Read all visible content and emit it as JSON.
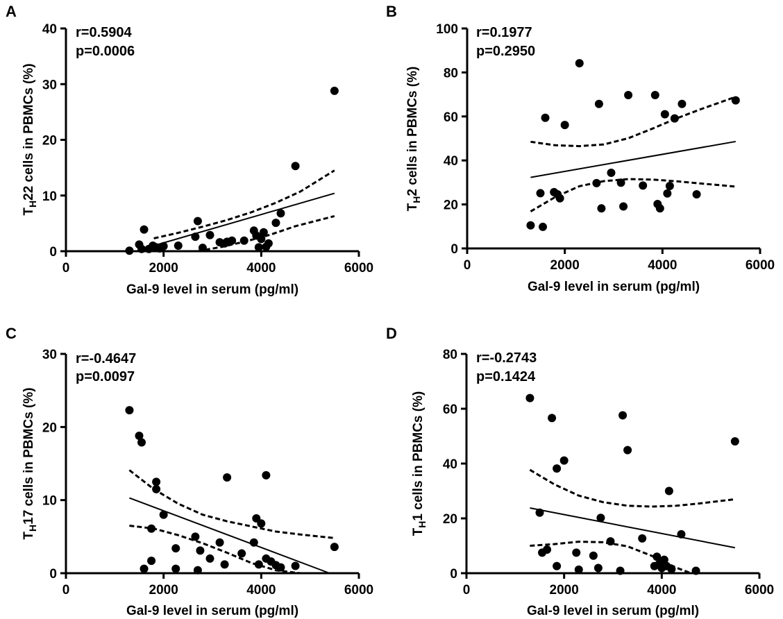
{
  "figure": {
    "panel_count": 4
  },
  "chart_data": [
    {
      "panel": "A",
      "type": "scatter",
      "stats": {
        "r": "r=0.5904",
        "p": "p=0.0006"
      },
      "xlabel": "Gal-9 level in serum (pg/ml)",
      "ylabel": {
        "prefix": "T",
        "sub": "H",
        "suffix": "22 cells in PBMCs (%)"
      },
      "xlim": [
        0,
        6000
      ],
      "ylim": [
        0,
        40
      ],
      "xticks": [
        0,
        2000,
        4000,
        6000
      ],
      "yticks": [
        0,
        10,
        20,
        30,
        40
      ],
      "points": [
        {
          "x": 1300,
          "y": 0.1
        },
        {
          "x": 1500,
          "y": 1.2
        },
        {
          "x": 1550,
          "y": 0.4
        },
        {
          "x": 1600,
          "y": 3.9
        },
        {
          "x": 1700,
          "y": 0.4
        },
        {
          "x": 1780,
          "y": 1.0
        },
        {
          "x": 1850,
          "y": 0.7
        },
        {
          "x": 1920,
          "y": 0.5
        },
        {
          "x": 2000,
          "y": 0.9
        },
        {
          "x": 2300,
          "y": 1.0
        },
        {
          "x": 2650,
          "y": 2.6
        },
        {
          "x": 2700,
          "y": 5.4
        },
        {
          "x": 2800,
          "y": 0.6
        },
        {
          "x": 2950,
          "y": 2.9
        },
        {
          "x": 3150,
          "y": 1.6
        },
        {
          "x": 3250,
          "y": 1.4
        },
        {
          "x": 3300,
          "y": 1.7
        },
        {
          "x": 3400,
          "y": 1.9
        },
        {
          "x": 3650,
          "y": 1.9
        },
        {
          "x": 3850,
          "y": 3.7
        },
        {
          "x": 3900,
          "y": 2.8
        },
        {
          "x": 3950,
          "y": 0.7
        },
        {
          "x": 4000,
          "y": 2.2
        },
        {
          "x": 4050,
          "y": 3.4
        },
        {
          "x": 4100,
          "y": 0.8
        },
        {
          "x": 4150,
          "y": 1.4
        },
        {
          "x": 4300,
          "y": 5.1
        },
        {
          "x": 4400,
          "y": 6.8
        },
        {
          "x": 4700,
          "y": 15.3
        },
        {
          "x": 5500,
          "y": 28.8
        }
      ],
      "fit": {
        "x": [
          1800,
          5500
        ],
        "y": [
          1.0,
          10.4
        ]
      },
      "ci_upper": {
        "x": [
          1800,
          2300,
          2800,
          3300,
          3800,
          4300,
          4800,
          5500
        ],
        "y": [
          2.3,
          3.3,
          4.4,
          5.6,
          7.0,
          8.7,
          10.7,
          14.5
        ]
      },
      "ci_lower": {
        "x": [
          2700,
          3200,
          3700,
          4200,
          4700,
          5500
        ],
        "y": [
          0.0,
          0.8,
          1.8,
          3.0,
          4.5,
          6.3
        ]
      }
    },
    {
      "panel": "B",
      "type": "scatter",
      "stats": {
        "r": "r=0.1977",
        "p": "p=0.2950"
      },
      "xlabel": "Gal-9 level in serum (pg/ml)",
      "ylabel": {
        "prefix": "T",
        "sub": "H",
        "suffix": "2 cells in PBMCs (%)"
      },
      "xlim": [
        0,
        6000
      ],
      "ylim": [
        0,
        100
      ],
      "xticks": [
        0,
        2000,
        4000,
        6000
      ],
      "yticks": [
        0,
        20,
        40,
        60,
        80,
        100
      ],
      "points": [
        {
          "x": 1300,
          "y": 10.5
        },
        {
          "x": 1500,
          "y": 25.1
        },
        {
          "x": 1550,
          "y": 9.8
        },
        {
          "x": 1600,
          "y": 59.4
        },
        {
          "x": 1780,
          "y": 25.6
        },
        {
          "x": 1850,
          "y": 24.6
        },
        {
          "x": 1900,
          "y": 22.8
        },
        {
          "x": 2000,
          "y": 56.1
        },
        {
          "x": 2300,
          "y": 84.2
        },
        {
          "x": 2650,
          "y": 29.7
        },
        {
          "x": 2700,
          "y": 65.7
        },
        {
          "x": 2750,
          "y": 18.2
        },
        {
          "x": 2950,
          "y": 34.4
        },
        {
          "x": 3150,
          "y": 29.9
        },
        {
          "x": 3200,
          "y": 19.1
        },
        {
          "x": 3300,
          "y": 69.7
        },
        {
          "x": 3600,
          "y": 28.6
        },
        {
          "x": 3850,
          "y": 69.7
        },
        {
          "x": 3900,
          "y": 20.2
        },
        {
          "x": 3950,
          "y": 18.2
        },
        {
          "x": 4050,
          "y": 61.0
        },
        {
          "x": 4100,
          "y": 25.0
        },
        {
          "x": 4150,
          "y": 28.4
        },
        {
          "x": 4250,
          "y": 59.1
        },
        {
          "x": 4400,
          "y": 65.7
        },
        {
          "x": 4700,
          "y": 24.6
        },
        {
          "x": 5500,
          "y": 67.3
        }
      ],
      "fit": {
        "x": [
          1300,
          5500
        ],
        "y": [
          32.3,
          48.6
        ]
      },
      "ci_upper": {
        "x": [
          1300,
          1800,
          2300,
          2800,
          3300,
          3800,
          4300,
          4800,
          5500
        ],
        "y": [
          48.5,
          46.9,
          46.5,
          47.3,
          50.1,
          54.5,
          59.2,
          63.4,
          68.9
        ]
      },
      "ci_lower": {
        "x": [
          1300,
          1800,
          2300,
          2800,
          3300,
          3800,
          4300,
          4800,
          5500
        ],
        "y": [
          16.8,
          23.3,
          28.3,
          30.6,
          31.5,
          31.3,
          30.5,
          29.5,
          28.1
        ]
      }
    },
    {
      "panel": "C",
      "type": "scatter",
      "stats": {
        "r": "r=-0.4647",
        "p": "p=0.0097"
      },
      "xlabel": "Gal-9 level in serum (pg/ml)",
      "ylabel": {
        "prefix": "T",
        "sub": "H",
        "suffix": "17 cells in PBMCs (%)"
      },
      "xlim": [
        0,
        6000
      ],
      "ylim": [
        0,
        30
      ],
      "xticks": [
        0,
        2000,
        4000,
        6000
      ],
      "yticks": [
        0,
        10,
        20,
        30
      ],
      "points": [
        {
          "x": 1300,
          "y": 22.3
        },
        {
          "x": 1500,
          "y": 18.8
        },
        {
          "x": 1550,
          "y": 17.9
        },
        {
          "x": 1600,
          "y": 0.6
        },
        {
          "x": 1750,
          "y": 1.7
        },
        {
          "x": 1750,
          "y": 6.1
        },
        {
          "x": 1850,
          "y": 12.5
        },
        {
          "x": 1850,
          "y": 11.5
        },
        {
          "x": 2000,
          "y": 8.0
        },
        {
          "x": 2250,
          "y": 3.4
        },
        {
          "x": 2250,
          "y": 0.6
        },
        {
          "x": 2650,
          "y": 5.0
        },
        {
          "x": 2700,
          "y": 0.4
        },
        {
          "x": 2750,
          "y": 3.1
        },
        {
          "x": 2950,
          "y": 2.0
        },
        {
          "x": 3150,
          "y": 4.2
        },
        {
          "x": 3250,
          "y": 1.2
        },
        {
          "x": 3300,
          "y": 13.1
        },
        {
          "x": 3600,
          "y": 2.7
        },
        {
          "x": 3850,
          "y": 4.2
        },
        {
          "x": 3900,
          "y": 7.5
        },
        {
          "x": 3950,
          "y": 1.2
        },
        {
          "x": 4000,
          "y": 6.8
        },
        {
          "x": 4100,
          "y": 2.0
        },
        {
          "x": 4100,
          "y": 13.4
        },
        {
          "x": 4200,
          "y": 1.6
        },
        {
          "x": 4300,
          "y": 1.1
        },
        {
          "x": 4400,
          "y": 0.8
        },
        {
          "x": 4700,
          "y": 1.0
        },
        {
          "x": 5500,
          "y": 3.6
        }
      ],
      "fit": {
        "x": [
          1300,
          5400
        ],
        "y": [
          10.3,
          0
        ]
      },
      "ci_upper": {
        "x": [
          1300,
          1800,
          2300,
          2800,
          3300,
          3800,
          4300,
          4800,
          5500
        ],
        "y": [
          14.1,
          11.5,
          9.5,
          8.0,
          7.1,
          6.4,
          5.7,
          5.3,
          4.8
        ]
      },
      "ci_lower": {
        "x": [
          1300,
          1800,
          2300,
          2800,
          3300,
          3800,
          4300,
          4800,
          5100
        ],
        "y": [
          6.5,
          6.1,
          5.2,
          4.1,
          2.8,
          1.4,
          0.4,
          0,
          0
        ]
      }
    },
    {
      "panel": "D",
      "type": "scatter",
      "stats": {
        "r": "r=-0.2743",
        "p": "p=0.1424"
      },
      "xlabel": "Gal-9 level in serum (pg/ml)",
      "ylabel": {
        "prefix": "T",
        "sub": "H",
        "suffix": "1 cells in PBMCs (%)"
      },
      "xlim": [
        0,
        6000
      ],
      "ylim": [
        0,
        80
      ],
      "xticks": [
        0,
        2000,
        4000,
        6000
      ],
      "yticks": [
        0,
        20,
        40,
        60,
        80
      ],
      "points": [
        {
          "x": 1300,
          "y": 63.9
        },
        {
          "x": 1500,
          "y": 22.1
        },
        {
          "x": 1550,
          "y": 7.5
        },
        {
          "x": 1650,
          "y": 8.6
        },
        {
          "x": 1750,
          "y": 56.6
        },
        {
          "x": 1850,
          "y": 38.2
        },
        {
          "x": 1850,
          "y": 2.6
        },
        {
          "x": 2000,
          "y": 41.1
        },
        {
          "x": 2250,
          "y": 7.5
        },
        {
          "x": 2300,
          "y": 1.3
        },
        {
          "x": 2600,
          "y": 6.4
        },
        {
          "x": 2700,
          "y": 1.9
        },
        {
          "x": 2750,
          "y": 20.2
        },
        {
          "x": 2950,
          "y": 11.6
        },
        {
          "x": 3150,
          "y": 0.9
        },
        {
          "x": 3200,
          "y": 57.6
        },
        {
          "x": 3300,
          "y": 44.9
        },
        {
          "x": 3600,
          "y": 12.7
        },
        {
          "x": 3850,
          "y": 2.6
        },
        {
          "x": 3900,
          "y": 6.0
        },
        {
          "x": 3950,
          "y": 3.4
        },
        {
          "x": 4000,
          "y": 1.9
        },
        {
          "x": 4050,
          "y": 4.9
        },
        {
          "x": 4100,
          "y": 2.6
        },
        {
          "x": 4150,
          "y": 30.0
        },
        {
          "x": 4200,
          "y": 1.5
        },
        {
          "x": 4400,
          "y": 14.2
        },
        {
          "x": 4700,
          "y": 0.9
        },
        {
          "x": 5500,
          "y": 48.1
        }
      ],
      "fit": {
        "x": [
          1300,
          5500
        ],
        "y": [
          23.8,
          9.3
        ]
      },
      "ci_upper": {
        "x": [
          1300,
          1800,
          2300,
          2800,
          3300,
          3800,
          4300,
          4800,
          5500
        ],
        "y": [
          37.7,
          32.4,
          28.3,
          25.9,
          24.6,
          24.3,
          24.6,
          25.5,
          27.0
        ]
      },
      "ci_lower": {
        "x": [
          1300,
          1800,
          2300,
          2800,
          3300,
          3800,
          4300,
          4600
        ],
        "y": [
          10.0,
          10.6,
          11.5,
          11.3,
          9.8,
          6.3,
          2.0,
          0
        ]
      }
    }
  ]
}
